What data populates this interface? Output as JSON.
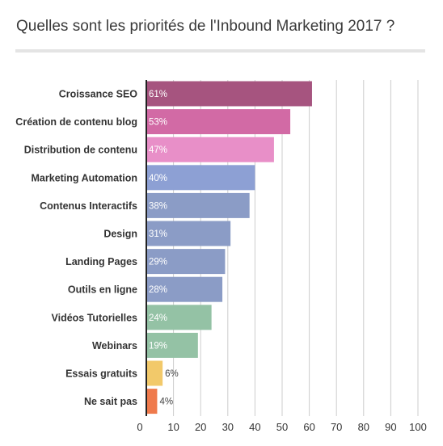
{
  "title": "Quelles sont les priorités de l'Inbound Marketing 2017 ?",
  "colors": {
    "grid": "#cccccc",
    "axis": "#222222"
  },
  "chart_data": {
    "type": "bar",
    "orientation": "horizontal",
    "categories": [
      "Croissance SEO",
      "Création de contenu blog",
      "Distribution de contenu",
      "Marketing Automation",
      "Contenus Interactifs",
      "Design",
      "Landing Pages",
      "Outils en ligne",
      "Vidéos Tutorielles",
      "Webinars",
      "Essais gratuits",
      "Ne sait pas"
    ],
    "values": [
      61,
      53,
      47,
      40,
      38,
      31,
      29,
      28,
      24,
      19,
      6,
      4
    ],
    "labels": [
      "61%",
      "53%",
      "47%",
      "40%",
      "38%",
      "31%",
      "29%",
      "28%",
      "24%",
      "19%",
      "6%",
      "4%"
    ],
    "bar_colors": [
      "#a6547f",
      "#d26aa5",
      "#e88fc8",
      "#8da0d4",
      "#8b9cc6",
      "#8b9cc6",
      "#8b9cc6",
      "#8b9cc6",
      "#94c2a5",
      "#94c2a5",
      "#f2c96a",
      "#ef7a4c"
    ],
    "xticks": [
      "0",
      "10",
      "20",
      "30",
      "40",
      "50",
      "60",
      "70",
      "80",
      "90",
      "100"
    ],
    "xlim": [
      0,
      100
    ],
    "grid": true,
    "legend": "none"
  }
}
